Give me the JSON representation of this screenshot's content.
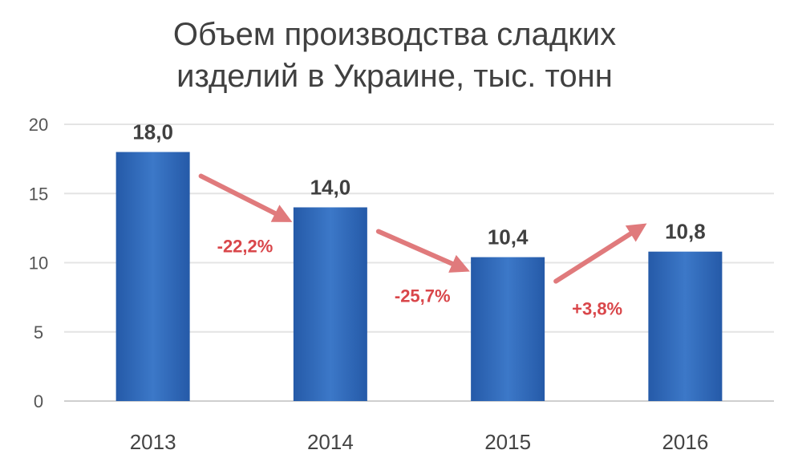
{
  "chart_data": {
    "type": "bar",
    "title_lines": [
      "Объем производства сладких",
      "изделий в Украине, тыс. тонн"
    ],
    "categories": [
      "2013",
      "2014",
      "2015",
      "2016"
    ],
    "values": [
      18.0,
      14.0,
      10.4,
      10.8
    ],
    "value_labels": [
      "18,0",
      "14,0",
      "10,4",
      "10,8"
    ],
    "ylim": [
      0,
      20
    ],
    "yticks": [
      0,
      5,
      10,
      15,
      20
    ],
    "grid": true,
    "bar_color": "#3c78c8",
    "bar_color_dark": "#255aa8",
    "changes": [
      {
        "from": 0,
        "to": 1,
        "label": "-22,2%"
      },
      {
        "from": 1,
        "to": 2,
        "label": "-25,7%"
      },
      {
        "from": 2,
        "to": 3,
        "label": "+3,8%"
      }
    ],
    "change_color": "#d9464a"
  }
}
